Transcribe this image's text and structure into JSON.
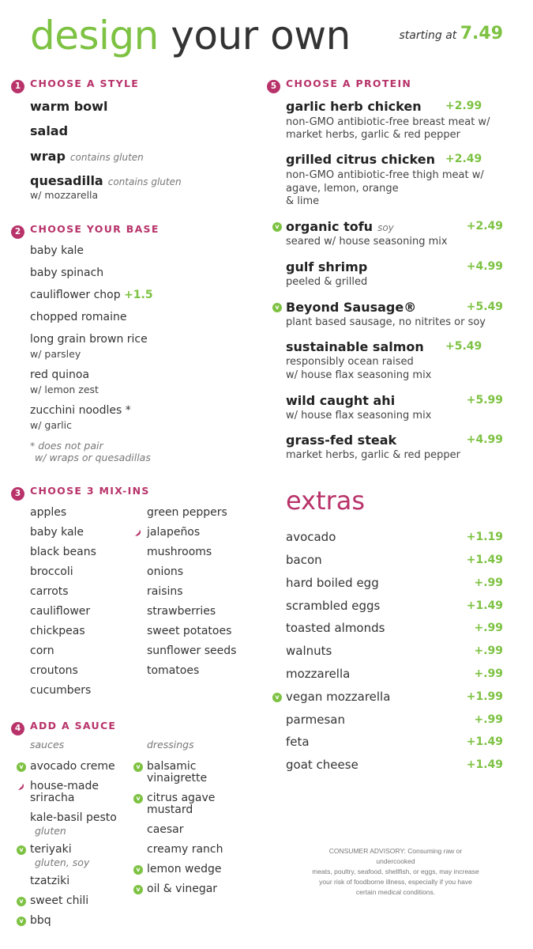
{
  "title": {
    "part1": "design",
    "part2": "your own"
  },
  "starting": {
    "label": "starting at",
    "price": "7.49"
  },
  "steps": {
    "style": {
      "num": "1",
      "label": "CHOOSE A STYLE"
    },
    "base": {
      "num": "2",
      "label": "CHOOSE YOUR BASE"
    },
    "mixins": {
      "num": "3",
      "label": "CHOOSE 3 MIX-INS"
    },
    "sauce": {
      "num": "4",
      "label": "ADD A SAUCE"
    },
    "protein": {
      "num": "5",
      "label": "CHOOSE A PROTEIN"
    }
  },
  "styles": [
    {
      "name": "warm bowl"
    },
    {
      "name": "salad"
    },
    {
      "name": "wrap",
      "note": "contains gluten"
    },
    {
      "name": "quesadilla",
      "note": "contains gluten",
      "sub": "w/ mozzarella"
    }
  ],
  "bases": [
    {
      "name": "baby kale"
    },
    {
      "name": "baby spinach"
    },
    {
      "name": "cauliflower chop",
      "price": "+1.5"
    },
    {
      "name": "chopped romaine"
    },
    {
      "name": "long grain brown rice",
      "sub": "w/ parsley"
    },
    {
      "name": "red quinoa",
      "sub": "w/ lemon zest"
    },
    {
      "name": "zucchini noodles *",
      "sub": "w/ garlic"
    }
  ],
  "base_note": {
    "line1": "* does not pair",
    "line2": "w/ wraps or quesadillas"
  },
  "mixins": {
    "col1": [
      "apples",
      "baby kale",
      "black beans",
      "broccoli",
      "carrots",
      "cauliflower",
      "chickpeas",
      "corn",
      "croutons",
      "cucumbers"
    ],
    "col2": [
      "green peppers",
      "jalapeños",
      "mushrooms",
      "onions",
      "raisins",
      "strawberries",
      "sweet potatoes",
      "sunflower seeds",
      "tomatoes"
    ]
  },
  "sauce_headers": {
    "sauces": "sauces",
    "dressings": "dressings"
  },
  "sauces": [
    {
      "name": "avocado creme",
      "icon": "vegan-icon"
    },
    {
      "name1": "house-made",
      "name2": "sriracha",
      "icon": "spicy-pepper-icon"
    },
    {
      "name": "kale-basil pesto",
      "note": "gluten"
    },
    {
      "name": "teriyaki",
      "note": "gluten, soy",
      "icon": "vegan-icon"
    },
    {
      "name": "tzatziki"
    },
    {
      "name": "sweet chili",
      "icon": "vegan-icon"
    },
    {
      "name": "bbq",
      "icon": "vegan-icon"
    }
  ],
  "dressings": [
    {
      "name1": "balsamic",
      "name2": "vinaigrette",
      "icon": "vegan-icon"
    },
    {
      "name1": "citrus agave",
      "name2": "mustard",
      "icon": "vegan-icon"
    },
    {
      "name": "caesar"
    },
    {
      "name": "creamy ranch"
    },
    {
      "name": "lemon wedge",
      "icon": "vegan-icon"
    },
    {
      "name": "oil & vinegar",
      "icon": "vegan-icon"
    }
  ],
  "vegan_mark": "v",
  "proteins": [
    {
      "name": "garlic herb chicken",
      "price": "+2.99",
      "desc1": "non-GMO antibiotic-free breast meat w/",
      "desc2": "market herbs, garlic & red pepper"
    },
    {
      "name": "grilled citrus chicken",
      "price": "+2.49",
      "desc1": "non-GMO antibiotic-free thigh meat w/",
      "desc2": "agave, lemon, orange",
      "desc3": "& lime"
    },
    {
      "name": "organic tofu",
      "note": "soy",
      "price": "+2.49",
      "desc1": "seared w/ house seasoning mix"
    },
    {
      "name": "gulf shrimp",
      "price": "+4.99",
      "desc1": "peeled & grilled"
    },
    {
      "name": "Beyond Sausage®",
      "price": "+5.49",
      "desc1": "plant based sausage, no nitrites or soy"
    },
    {
      "name": "sustainable salmon",
      "price": "+5.49",
      "desc1": "responsibly ocean raised",
      "desc2": "w/ house flax seasoning mix"
    },
    {
      "name": "wild caught ahi",
      "price": "+5.99",
      "desc1": "w/ house flax seasoning mix"
    },
    {
      "name": "grass-fed steak",
      "price": "+4.99",
      "desc1": "market herbs, garlic & red pepper"
    }
  ],
  "extras_title": "extras",
  "extras": [
    {
      "name": "avocado",
      "price": "+1.19"
    },
    {
      "name": "bacon",
      "price": "+1.49"
    },
    {
      "name": "hard boiled egg",
      "price": "+.99"
    },
    {
      "name": "scrambled eggs",
      "price": "+1.49"
    },
    {
      "name": "toasted almonds",
      "price": "+.99"
    },
    {
      "name": "walnuts",
      "price": "+.99"
    },
    {
      "name": "mozzarella",
      "price": "+.99"
    },
    {
      "name": "vegan mozzarella",
      "price": "+1.99"
    },
    {
      "name": "parmesan",
      "price": "+.99"
    },
    {
      "name": "feta",
      "price": "+1.49"
    },
    {
      "name": "goat cheese",
      "price": "+1.49"
    }
  ],
  "advisory": {
    "line1": "CONSUMER ADVISORY: Consuming raw or undercooked",
    "line2": "meats, poultry, seafood, shellfish, or eggs, may increase",
    "line3": "your risk of foodborne illness, especially if you have",
    "line4": "certain medical conditions."
  }
}
